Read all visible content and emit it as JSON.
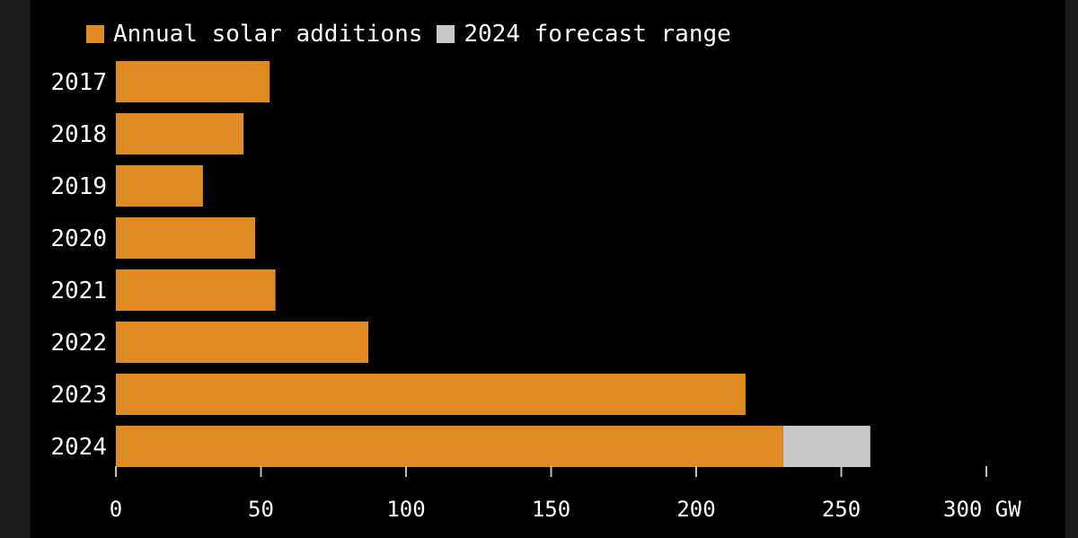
{
  "chart_data": {
    "type": "bar",
    "orientation": "horizontal",
    "categories": [
      "2017",
      "2018",
      "2019",
      "2020",
      "2021",
      "2022",
      "2023",
      "2024"
    ],
    "series": [
      {
        "name": "Annual solar additions",
        "color": "#E08A24",
        "values": [
          53,
          44,
          30,
          48,
          55,
          87,
          217,
          230
        ]
      },
      {
        "name": "2024 forecast range",
        "color": "#C8C8C8",
        "values": [
          0,
          0,
          0,
          0,
          0,
          0,
          0,
          30
        ]
      }
    ],
    "stacked": true,
    "xlim": [
      0,
      300
    ],
    "x_ticks": [
      "0",
      "50",
      "100",
      "150",
      "200",
      "250",
      "300 GW"
    ],
    "x_tick_values": [
      0,
      50,
      100,
      150,
      200,
      250,
      300
    ],
    "grid": false,
    "legend_position": "top-left",
    "background": "#000000",
    "text_color": "#FFFFFF"
  }
}
